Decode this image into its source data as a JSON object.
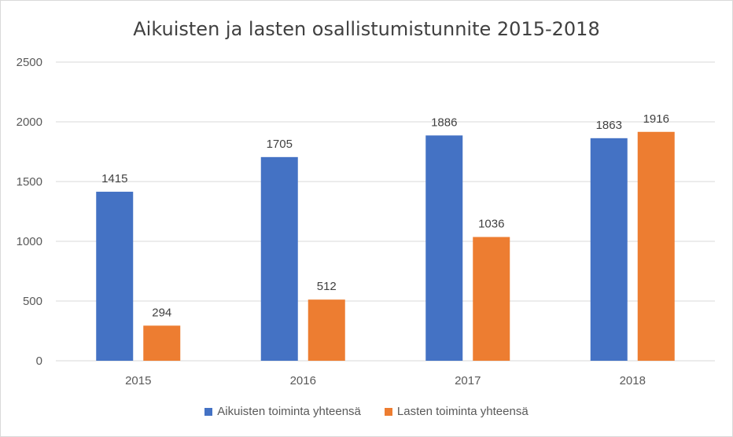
{
  "chart_data": {
    "type": "bar",
    "title": "Aikuisten ja lasten osallistumistunnite 2015-2018",
    "xlabel": "",
    "ylabel": "",
    "categories": [
      "2015",
      "2016",
      "2017",
      "2018"
    ],
    "series": [
      {
        "name": "Aikuisten toiminta yhteensä",
        "color": "#4472c4",
        "values": [
          1415,
          1705,
          1886,
          1863
        ]
      },
      {
        "name": "Lasten toiminta yhteensä",
        "color": "#ed7d31",
        "values": [
          294,
          512,
          1036,
          1916
        ]
      }
    ],
    "ylim": [
      0,
      2500
    ],
    "yticks": [
      0,
      500,
      1000,
      1500,
      2000,
      2500
    ],
    "grid": true,
    "legend": "bottom"
  }
}
